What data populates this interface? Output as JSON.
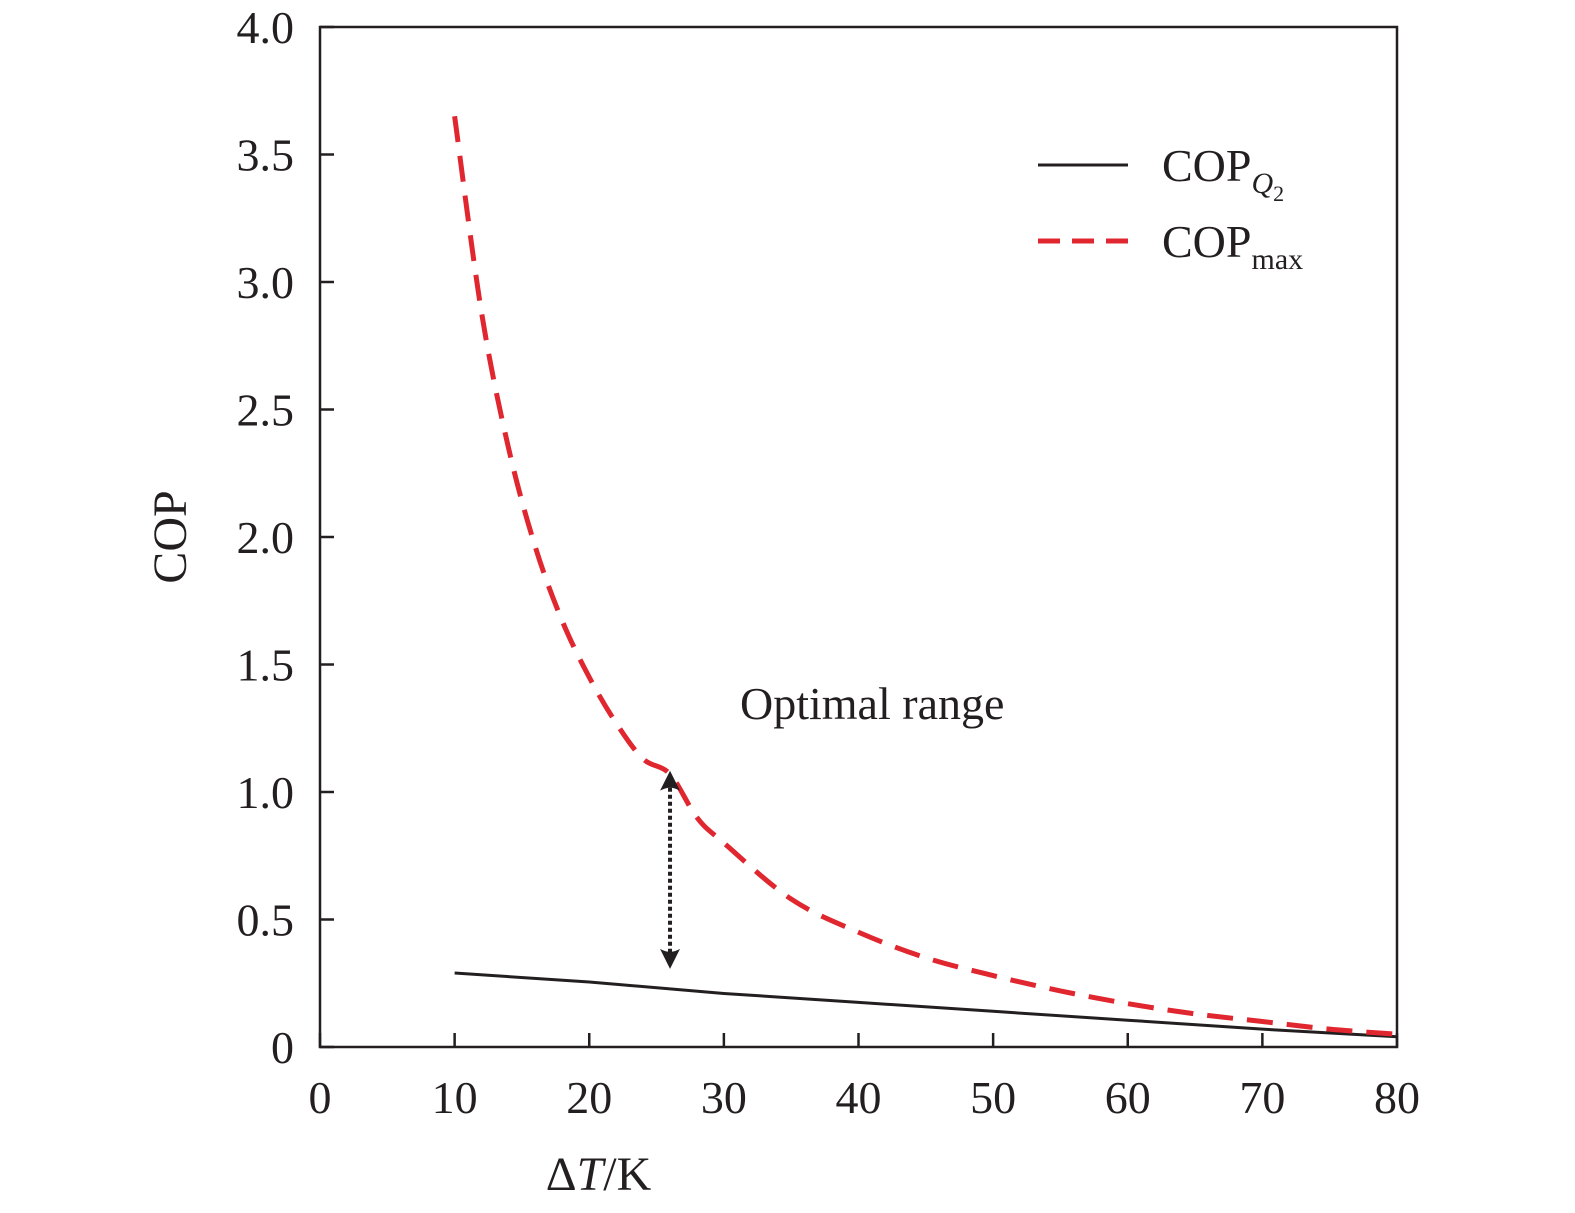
{
  "chart_data": {
    "type": "line",
    "title": "",
    "xlabel": {
      "prefix": "ΔT",
      "symbol": "T",
      "suffix": "/K"
    },
    "ylabel": "COP",
    "xlim": [
      0,
      80
    ],
    "ylim": [
      0,
      4.0
    ],
    "xticks": [
      0,
      10,
      20,
      30,
      40,
      50,
      60,
      70,
      80
    ],
    "yticks": [
      0,
      0.5,
      1.0,
      1.5,
      2.0,
      2.5,
      3.0,
      3.5,
      4.0
    ],
    "xtick_labels": [
      "0",
      "10",
      "20",
      "30",
      "40",
      "50",
      "60",
      "70",
      "80"
    ],
    "ytick_labels": [
      "0",
      "0.5",
      "1.0",
      "1.5",
      "2.0",
      "2.5",
      "3.0",
      "3.5",
      "4.0"
    ],
    "grid": false,
    "legend_position": "top-right",
    "series": [
      {
        "name": "COP",
        "subscript": "Q",
        "subsubscript": "2",
        "style": "solid",
        "color": "#231f20",
        "x": [
          10,
          20,
          30,
          40,
          50,
          60,
          70,
          80
        ],
        "y": [
          0.29,
          0.255,
          0.21,
          0.175,
          0.14,
          0.105,
          0.07,
          0.04
        ]
      },
      {
        "name": "COP",
        "subscript": "max",
        "style": "dashed",
        "color": "#e0262f",
        "x": [
          10,
          12,
          14,
          16,
          18,
          20,
          22,
          24,
          26,
          28,
          30,
          35,
          40,
          45,
          50,
          55,
          60,
          65,
          70,
          75,
          80
        ],
        "y": [
          3.65,
          2.88,
          2.35,
          1.96,
          1.67,
          1.45,
          1.27,
          1.13,
          1.07,
          0.9,
          0.8,
          0.58,
          0.45,
          0.35,
          0.28,
          0.22,
          0.17,
          0.13,
          0.1,
          0.07,
          0.05
        ]
      }
    ],
    "annotations": [
      {
        "text": "Optimal range"
      }
    ],
    "arrow": {
      "x": 26,
      "y_top": 1.06,
      "y_bottom": 0.33
    }
  }
}
